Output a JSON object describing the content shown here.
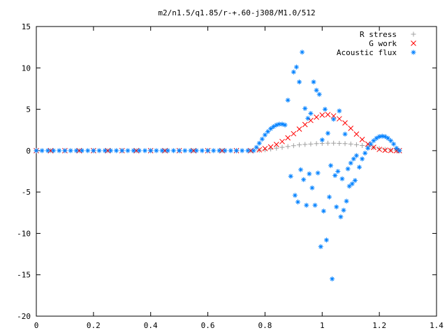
{
  "chart_data": {
    "type": "scatter",
    "title": "m2/n1.5/q1.85/r-+.60-j308/M1.0/512",
    "xlabel": "",
    "ylabel": "",
    "xlim": [
      0,
      1.4
    ],
    "ylim": [
      -20,
      15
    ],
    "xticks": [
      "0",
      "0.2",
      "0.4",
      "0.6",
      "0.8",
      "1",
      "1.2",
      "1.4"
    ],
    "yticks": [
      "15",
      "10",
      "5",
      "0",
      "-5",
      "-10",
      "-15",
      "-20"
    ],
    "legend_position": "top-right",
    "grid": false,
    "series": [
      {
        "name": "R stress",
        "marker": "plus",
        "color": "#a0a0a0",
        "x": [
          0.0,
          0.05,
          0.1,
          0.15,
          0.2,
          0.25,
          0.3,
          0.35,
          0.4,
          0.45,
          0.5,
          0.55,
          0.6,
          0.65,
          0.7,
          0.75,
          0.78,
          0.8,
          0.82,
          0.84,
          0.86,
          0.88,
          0.9,
          0.92,
          0.94,
          0.96,
          0.98,
          1.0,
          1.02,
          1.04,
          1.06,
          1.08,
          1.1,
          1.12,
          1.14,
          1.16,
          1.18,
          1.2,
          1.22,
          1.24,
          1.26,
          1.27
        ],
        "y": [
          0,
          0,
          0,
          0,
          0,
          0,
          0,
          0,
          0,
          0,
          0,
          0,
          0,
          0,
          0,
          0,
          0.05,
          0.1,
          0.2,
          0.3,
          0.4,
          0.5,
          0.6,
          0.7,
          0.75,
          0.8,
          0.85,
          0.88,
          0.9,
          0.9,
          0.88,
          0.85,
          0.8,
          0.72,
          0.62,
          0.5,
          0.38,
          0.25,
          0.15,
          0.07,
          0.02,
          0
        ]
      },
      {
        "name": "G work",
        "marker": "cross",
        "color": "#ff0000",
        "x": [
          0.0,
          0.05,
          0.1,
          0.15,
          0.2,
          0.25,
          0.3,
          0.35,
          0.4,
          0.45,
          0.5,
          0.55,
          0.6,
          0.65,
          0.7,
          0.75,
          0.78,
          0.8,
          0.82,
          0.84,
          0.86,
          0.88,
          0.9,
          0.92,
          0.94,
          0.96,
          0.98,
          1.0,
          1.02,
          1.04,
          1.06,
          1.08,
          1.1,
          1.12,
          1.14,
          1.16,
          1.18,
          1.2,
          1.22,
          1.24,
          1.26,
          1.27
        ],
        "y": [
          0,
          0,
          0,
          0,
          0,
          0,
          0,
          0,
          0,
          0,
          0,
          0,
          0,
          0,
          0,
          0,
          0.1,
          0.25,
          0.45,
          0.75,
          1.1,
          1.55,
          2.05,
          2.6,
          3.15,
          3.65,
          4.05,
          4.3,
          4.35,
          4.2,
          3.85,
          3.35,
          2.7,
          2.0,
          1.35,
          0.8,
          0.4,
          0.15,
          0.05,
          0.02,
          0,
          0
        ]
      },
      {
        "name": "Acoustic flux",
        "marker": "star",
        "color": "#0080ff",
        "x": [
          0.0,
          0.02,
          0.04,
          0.06,
          0.08,
          0.1,
          0.12,
          0.14,
          0.16,
          0.18,
          0.2,
          0.22,
          0.24,
          0.26,
          0.28,
          0.3,
          0.32,
          0.34,
          0.36,
          0.38,
          0.4,
          0.42,
          0.44,
          0.46,
          0.48,
          0.5,
          0.52,
          0.54,
          0.56,
          0.58,
          0.6,
          0.62,
          0.64,
          0.66,
          0.68,
          0.7,
          0.72,
          0.74,
          0.76,
          0.77,
          0.78,
          0.79,
          0.8,
          0.81,
          0.82,
          0.83,
          0.84,
          0.85,
          0.86,
          0.87,
          0.88,
          0.89,
          0.9,
          0.905,
          0.91,
          0.915,
          0.92,
          0.925,
          0.93,
          0.935,
          0.94,
          0.945,
          0.95,
          0.955,
          0.96,
          0.965,
          0.97,
          0.975,
          0.98,
          0.985,
          0.99,
          0.995,
          1.0,
          1.005,
          1.01,
          1.015,
          1.02,
          1.025,
          1.03,
          1.035,
          1.04,
          1.045,
          1.05,
          1.055,
          1.06,
          1.065,
          1.07,
          1.075,
          1.08,
          1.085,
          1.09,
          1.095,
          1.1,
          1.105,
          1.11,
          1.115,
          1.12,
          1.13,
          1.14,
          1.15,
          1.16,
          1.17,
          1.18,
          1.19,
          1.2,
          1.21,
          1.22,
          1.23,
          1.24,
          1.25,
          1.26,
          1.27
        ],
        "y": [
          0,
          0,
          0,
          0,
          0,
          0,
          0,
          0,
          0,
          0,
          0,
          0,
          0,
          0,
          0,
          0,
          0,
          0,
          0,
          0,
          0,
          0,
          0,
          0,
          0,
          0,
          0,
          0,
          0,
          0,
          0,
          0,
          0,
          0,
          0,
          0,
          0,
          0,
          0,
          0.4,
          0.9,
          1.4,
          1.9,
          2.3,
          2.65,
          2.9,
          3.1,
          3.2,
          3.2,
          3.1,
          6.1,
          -3.1,
          9.5,
          -5.4,
          10.1,
          -6.2,
          8.3,
          -2.3,
          11.9,
          -3.5,
          5.1,
          -6.6,
          3.9,
          -2.8,
          4.5,
          -4.5,
          8.3,
          -6.6,
          7.3,
          -2.7,
          6.8,
          -11.6,
          1.3,
          -7.3,
          5.0,
          -10.8,
          2.1,
          -5.6,
          -1.8,
          -15.5,
          3.8,
          -3.0,
          -6.8,
          -2.5,
          4.8,
          -8.0,
          -3.4,
          -7.2,
          2.0,
          -6.1,
          -2.2,
          -4.3,
          -1.5,
          -4.0,
          -1.0,
          -3.6,
          -0.6,
          -2.0,
          -1.0,
          -0.3,
          0.3,
          0.8,
          1.2,
          1.5,
          1.7,
          1.75,
          1.7,
          1.5,
          1.2,
          0.8,
          0.3,
          0
        ]
      }
    ]
  }
}
